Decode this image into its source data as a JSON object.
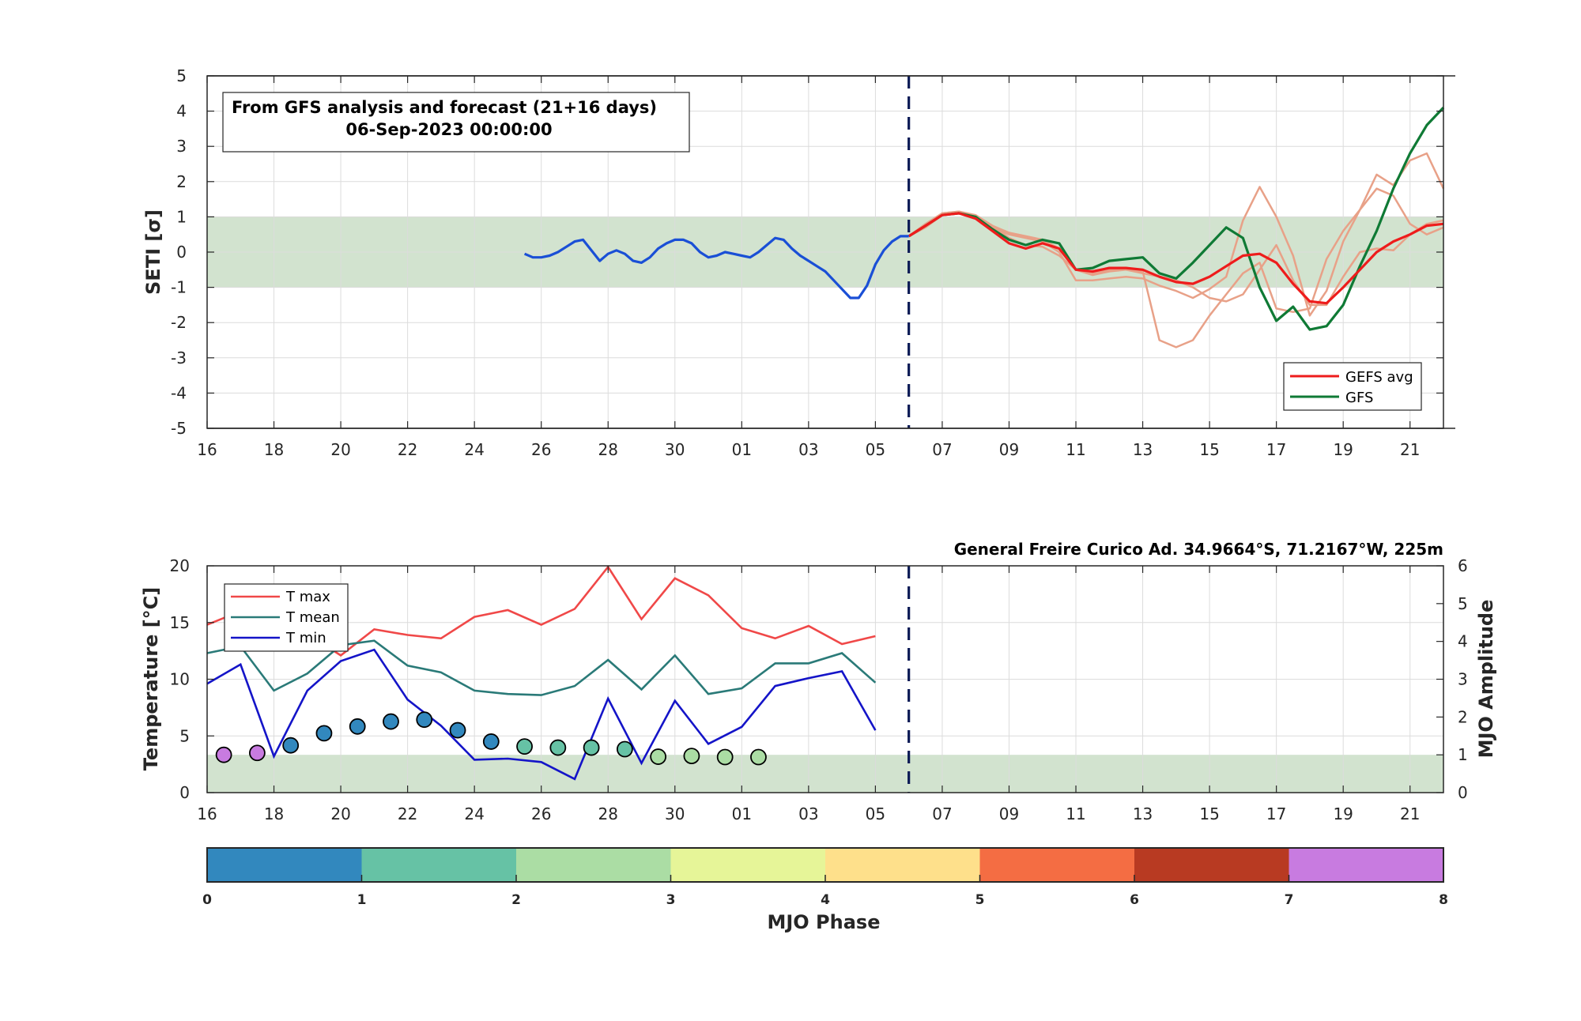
{
  "chart_data": [
    {
      "type": "line",
      "ylabel": "SETI [σ]",
      "ylim": [
        -5,
        5
      ],
      "yticks": [
        5,
        4,
        3,
        2,
        1,
        0,
        -1,
        -2,
        -3,
        -4,
        -5
      ],
      "xlim_days": [
        0,
        37
      ],
      "xtick_labels": [
        "16",
        "18",
        "20",
        "22",
        "24",
        "26",
        "28",
        "30",
        "01",
        "03",
        "05",
        "07",
        "09",
        "11",
        "13",
        "15",
        "17",
        "19",
        "21"
      ],
      "info_box": {
        "line1": "From GFS analysis and forecast (21+16 days)",
        "line2": "06-Sep-2023 00:00:00"
      },
      "forecast_start_day": 21,
      "normal_band": [
        -1,
        1
      ],
      "band_color": "#d2e3cf",
      "series": [
        {
          "name": "",
          "color": "#1a4fd6",
          "role": "analysis",
          "x": [
            9.5,
            9.75,
            10,
            10.25,
            10.5,
            10.75,
            11,
            11.25,
            11.5,
            11.75,
            12,
            12.25,
            12.5,
            12.75,
            13,
            13.25,
            13.5,
            13.75,
            14,
            14.25,
            14.5,
            14.75,
            15,
            15.25,
            15.5,
            15.75,
            16,
            16.25,
            16.5,
            16.75,
            17,
            17.25,
            17.5,
            17.75,
            18,
            18.25,
            18.5,
            18.75,
            19,
            19.25,
            19.5,
            19.75,
            20,
            20.25,
            20.5,
            20.75,
            21
          ],
          "y": [
            -0.05,
            -0.15,
            -0.15,
            -0.1,
            0,
            0.15,
            0.3,
            0.35,
            0.05,
            -0.25,
            -0.05,
            0.05,
            -0.05,
            -0.25,
            -0.3,
            -0.15,
            0.1,
            0.25,
            0.35,
            0.35,
            0.25,
            0,
            -0.15,
            -0.1,
            0,
            -0.05,
            -0.1,
            -0.15,
            0,
            0.2,
            0.4,
            0.35,
            0.1,
            -0.1,
            -0.25,
            -0.4,
            -0.55,
            -0.8,
            -1.05,
            -1.3,
            -1.3,
            -0.95,
            -0.35,
            0.05,
            0.3,
            0.45,
            0.45
          ]
        },
        {
          "name": "",
          "color": "#e8a188",
          "role": "member",
          "x": [
            21,
            21.5,
            22,
            22.5,
            23,
            23.5,
            24,
            24.5,
            25,
            25.5,
            26,
            26.5,
            27,
            27.5,
            28,
            28.5,
            29,
            29.5,
            30,
            30.5,
            31,
            31.5,
            32,
            32.5,
            33,
            33.5,
            34,
            34.5,
            35,
            35.5,
            36,
            36.5,
            37
          ],
          "y": [
            0.45,
            0.75,
            1.1,
            1.15,
            1.0,
            0.7,
            0.5,
            0.4,
            0.3,
            0.0,
            -0.8,
            -0.8,
            -0.75,
            -0.7,
            -0.75,
            -0.95,
            -1.1,
            -1.3,
            -1.05,
            -0.7,
            0.9,
            1.85,
            1.0,
            -0.1,
            -1.8,
            -1.1,
            0.3,
            1.2,
            1.8,
            1.6,
            0.8,
            0.5,
            0.7
          ]
        },
        {
          "name": "",
          "color": "#e8a188",
          "role": "member",
          "x": [
            21,
            21.5,
            22,
            22.5,
            23,
            23.5,
            24,
            24.5,
            25,
            25.5,
            26,
            26.5,
            27,
            27.5,
            28,
            28.5,
            29,
            29.5,
            30,
            30.5,
            31,
            31.5,
            32,
            32.5,
            33,
            33.5,
            34,
            34.5,
            35,
            35.5,
            36,
            36.5,
            37
          ],
          "y": [
            0.45,
            0.8,
            1.1,
            1.15,
            1.05,
            0.75,
            0.55,
            0.45,
            0.35,
            0.1,
            -0.5,
            -0.65,
            -0.55,
            -0.5,
            -0.55,
            -2.5,
            -2.7,
            -2.5,
            -1.8,
            -1.2,
            -0.6,
            -0.3,
            -1.6,
            -1.7,
            -1.6,
            -0.2,
            0.6,
            1.2,
            2.2,
            1.9,
            2.6,
            2.8,
            1.8
          ]
        },
        {
          "name": "",
          "color": "#e8a188",
          "role": "member",
          "x": [
            21,
            21.5,
            22,
            22.5,
            23,
            23.5,
            24,
            24.5,
            25,
            25.5,
            26,
            26.5,
            27,
            27.5,
            28,
            28.5,
            29,
            29.5,
            30,
            30.5,
            31,
            31.5,
            32,
            32.5,
            33,
            33.5,
            34,
            34.5,
            35,
            35.5,
            36,
            36.5,
            37
          ],
          "y": [
            0.45,
            0.7,
            1.05,
            1.1,
            1.0,
            0.75,
            0.4,
            0.2,
            0.15,
            -0.1,
            -0.5,
            -0.6,
            -0.5,
            -0.5,
            -0.6,
            -0.7,
            -0.8,
            -1.0,
            -1.3,
            -1.4,
            -1.2,
            -0.5,
            0.2,
            -0.8,
            -1.5,
            -1.5,
            -0.7,
            0.0,
            0.1,
            0.05,
            0.5,
            0.8,
            0.9
          ]
        },
        {
          "name": "GEFS avg",
          "color": "#ee1c1c",
          "role": "mean",
          "x": [
            21,
            21.5,
            22,
            22.5,
            23,
            23.5,
            24,
            24.5,
            25,
            25.5,
            26,
            26.5,
            27,
            27.5,
            28,
            28.5,
            29,
            29.5,
            30,
            30.5,
            31,
            31.5,
            32,
            32.5,
            33,
            33.5,
            34,
            34.5,
            35,
            35.5,
            36,
            36.5,
            37
          ],
          "y": [
            0.45,
            0.75,
            1.05,
            1.1,
            0.95,
            0.6,
            0.25,
            0.1,
            0.25,
            0.1,
            -0.5,
            -0.55,
            -0.45,
            -0.45,
            -0.5,
            -0.7,
            -0.85,
            -0.9,
            -0.7,
            -0.4,
            -0.1,
            -0.05,
            -0.3,
            -0.9,
            -1.4,
            -1.45,
            -1.0,
            -0.5,
            0.0,
            0.3,
            0.5,
            0.75,
            0.8
          ]
        },
        {
          "name": "GFS",
          "color": "#0f7a35",
          "role": "deterministic",
          "x": [
            21,
            21.5,
            22,
            22.5,
            23,
            23.5,
            24,
            24.5,
            25,
            25.5,
            26,
            26.5,
            27,
            27.5,
            28,
            28.5,
            29,
            29.5,
            30,
            30.5,
            31,
            31.5,
            32,
            32.5,
            33,
            33.5,
            34,
            34.5,
            35,
            35.5,
            36,
            36.5,
            37
          ],
          "y": [
            0.45,
            0.75,
            1.05,
            1.1,
            1.0,
            0.65,
            0.35,
            0.2,
            0.35,
            0.25,
            -0.5,
            -0.45,
            -0.25,
            -0.2,
            -0.15,
            -0.6,
            -0.75,
            -0.3,
            0.2,
            0.7,
            0.4,
            -1.0,
            -1.95,
            -1.55,
            -2.2,
            -2.1,
            -1.5,
            -0.4,
            0.6,
            1.8,
            2.8,
            3.6,
            4.1
          ]
        }
      ]
    },
    {
      "type": "line+scatter",
      "ylabel_left": "Temperature [°C]",
      "ylabel_right": "MJO Amplitude",
      "ylim_left": [
        0,
        20
      ],
      "ylim_right": [
        0,
        6
      ],
      "yticks_left": [
        20,
        15,
        10,
        5,
        0
      ],
      "yticks_right": [
        6,
        5,
        4,
        3,
        2,
        1,
        0
      ],
      "xlim_days": [
        0,
        37
      ],
      "xtick_labels": [
        "16",
        "18",
        "20",
        "22",
        "24",
        "26",
        "28",
        "30",
        "01",
        "03",
        "05",
        "07",
        "09",
        "11",
        "13",
        "15",
        "17",
        "19",
        "21"
      ],
      "station": "General Freire Curico Ad. 34.9664°S, 71.2167°W, 225m",
      "forecast_start_day": 21,
      "mjo_band_amplitude": [
        0,
        1
      ],
      "series": [
        {
          "name": "T max",
          "color": "#f04848",
          "x": [
            0,
            1,
            2,
            3,
            4,
            5,
            6,
            7,
            8,
            9,
            10,
            11,
            12,
            13,
            14,
            15,
            16,
            17,
            18,
            19,
            20
          ],
          "y": [
            14.8,
            16.0,
            14.2,
            14.0,
            12.1,
            14.4,
            13.9,
            13.6,
            15.5,
            16.1,
            14.8,
            16.2,
            19.9,
            15.3,
            18.9,
            17.4,
            14.5,
            13.6,
            14.7,
            13.1,
            13.8
          ]
        },
        {
          "name": "T mean",
          "color": "#2a7a78",
          "x": [
            0,
            1,
            2,
            3,
            4,
            5,
            6,
            7,
            8,
            9,
            10,
            11,
            12,
            13,
            14,
            15,
            16,
            17,
            18,
            19,
            20
          ],
          "y": [
            12.3,
            12.9,
            9.0,
            10.5,
            13.0,
            13.4,
            11.2,
            10.6,
            9.0,
            8.7,
            8.6,
            9.4,
            11.7,
            9.1,
            12.1,
            8.7,
            9.2,
            11.4,
            11.4,
            12.3,
            9.7
          ]
        },
        {
          "name": "T min",
          "color": "#1414c8",
          "x": [
            0,
            1,
            2,
            3,
            4,
            5,
            6,
            7,
            8,
            9,
            10,
            11,
            12,
            13,
            14,
            15,
            16,
            17,
            18,
            19,
            20
          ],
          "y": [
            9.6,
            11.3,
            3.2,
            9.0,
            11.6,
            12.6,
            8.2,
            5.9,
            2.9,
            3.0,
            2.7,
            1.2,
            8.3,
            2.6,
            8.1,
            4.3,
            5.8,
            9.4,
            10.1,
            10.7,
            5.5
          ]
        }
      ],
      "mjo_points": {
        "day": [
          0.5,
          1.5,
          2.5,
          3.5,
          4.5,
          5.5,
          6.5,
          7.5,
          8.5,
          9.5,
          10.5,
          11.5,
          12.5,
          13.5,
          14.5,
          15.5,
          16.5
        ],
        "amplitude": [
          1.0,
          1.05,
          1.25,
          1.57,
          1.75,
          1.88,
          1.93,
          1.65,
          1.35,
          1.22,
          1.19,
          1.19,
          1.15,
          0.95,
          0.97,
          0.94,
          0.94
        ],
        "phase": [
          7,
          7,
          0,
          0,
          0,
          0,
          0,
          0,
          0,
          1,
          1,
          1,
          1,
          2,
          2,
          2,
          2
        ]
      },
      "mjo_colorbar": {
        "label": "MJO Phase",
        "ticks": [
          "0",
          "1",
          "2",
          "3",
          "4",
          "5",
          "6",
          "7",
          "8"
        ],
        "colors": [
          "#3288be",
          "#66c2a5",
          "#abdda4",
          "#e6f598",
          "#fee08b",
          "#f46d43",
          "#b83a22",
          "#c87be0"
        ]
      }
    }
  ]
}
